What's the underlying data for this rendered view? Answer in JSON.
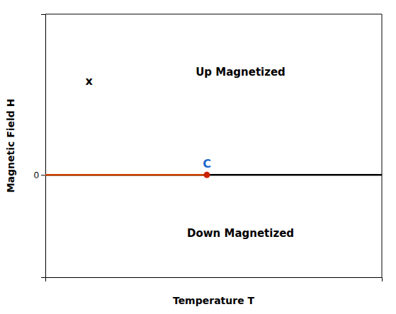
{
  "chart_data": {
    "type": "line",
    "x_label": "Temperature T",
    "y_label": "Magnetic Field H",
    "xlim": [
      0,
      10
    ],
    "ylim": [
      -3.5,
      5.5
    ],
    "xticks": [],
    "yticks": [
      0
    ],
    "tick_labels": "y",
    "grid": false,
    "hlines": [
      {
        "y": 0,
        "color": "#000000"
      }
    ],
    "series": [
      {
        "type": "line",
        "color": "#cc4400",
        "x": [
          0,
          4.8
        ],
        "values": [
          0,
          0
        ]
      },
      {
        "type": "scatter",
        "color": "#cc2200",
        "marker": "circle",
        "x": [
          4.8
        ],
        "values": [
          0
        ]
      }
    ],
    "annotations": [
      {
        "text": "C",
        "x": 4.8,
        "y": 0,
        "color": "#1a66cc"
      },
      {
        "text": "Up Magnetized",
        "x": 5.8,
        "y": 3.5
      },
      {
        "text": "Down Magnetized",
        "x": 5.8,
        "y": -2.0
      },
      {
        "text": "x",
        "x": 1.3,
        "y": 3.2
      }
    ]
  }
}
